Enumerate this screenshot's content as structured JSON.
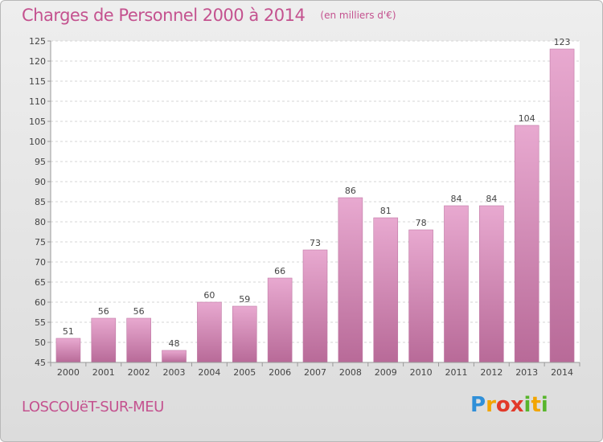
{
  "header": {
    "title": "Charges de Personnel 2000 à 2014",
    "subtitle": "(en milliers d'€)"
  },
  "footer": {
    "city": "LOSCOUëT-SUR-MEU",
    "brand_letters": [
      {
        "char": "P",
        "color": "#2f8fd8"
      },
      {
        "char": "r",
        "color": "#f2a500"
      },
      {
        "char": "o",
        "color": "#e23a2a"
      },
      {
        "char": "x",
        "color": "#e23a2a"
      },
      {
        "char": "i",
        "color": "#58b52c"
      },
      {
        "char": "t",
        "color": "#f2a500"
      },
      {
        "char": "i",
        "color": "#58b52c"
      }
    ]
  },
  "colors": {
    "accent": "#c4528f",
    "bar_top": "#e8a9d0",
    "bar_bottom": "#b86a98"
  },
  "chart_data": {
    "type": "bar",
    "categories": [
      "2000",
      "2001",
      "2002",
      "2003",
      "2004",
      "2005",
      "2006",
      "2007",
      "2008",
      "2009",
      "2010",
      "2011",
      "2012",
      "2013",
      "2014"
    ],
    "values": [
      51,
      56,
      56,
      48,
      60,
      59,
      66,
      73,
      86,
      81,
      78,
      84,
      84,
      104,
      123
    ],
    "ylim": [
      45,
      125
    ],
    "yticks": [
      45,
      50,
      55,
      60,
      65,
      70,
      75,
      80,
      85,
      90,
      95,
      100,
      105,
      110,
      115,
      120,
      125
    ],
    "grid": true,
    "title": "Charges de Personnel 2000 à 2014",
    "subtitle": "(en milliers d'€)"
  }
}
